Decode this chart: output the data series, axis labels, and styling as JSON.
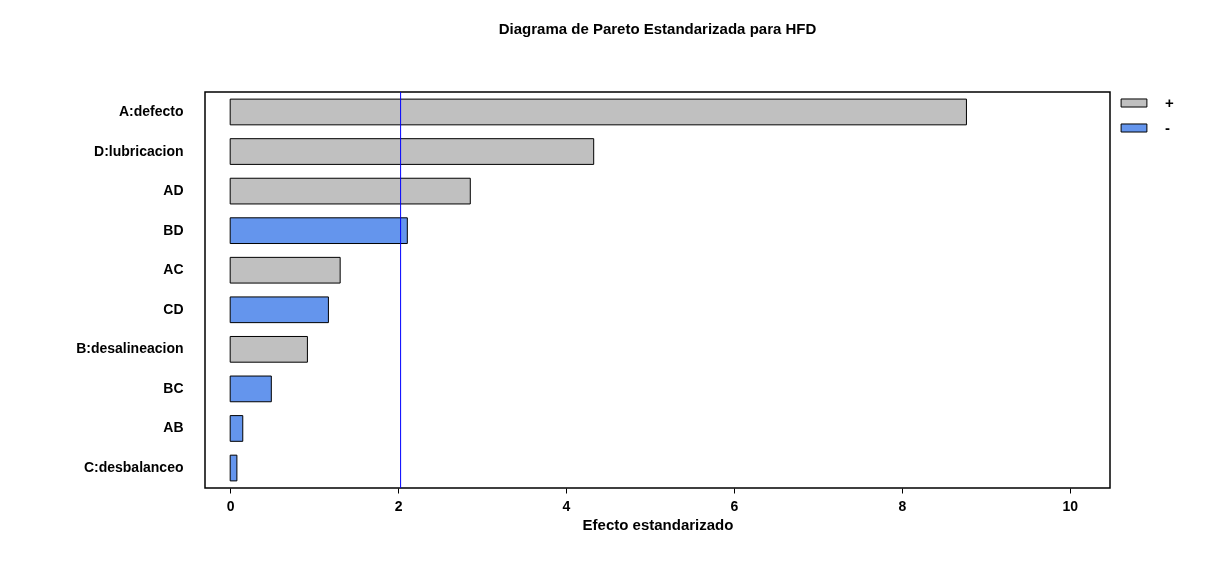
{
  "chart_data": {
    "type": "bar",
    "orientation": "horizontal",
    "title": "Diagrama de Pareto Estandarizada para HFD",
    "xlabel": "Efecto estandarizado",
    "categories": [
      "A:defecto",
      "D:lubricacion",
      "AD",
      "BD",
      "AC",
      "CD",
      "B:desalineacion",
      "BC",
      "AB",
      "C:desbalanceo"
    ],
    "series": [
      {
        "name": "+",
        "color": "#c0c0c0",
        "values": [
          8.77,
          4.33,
          2.86,
          null,
          1.31,
          null,
          0.92,
          null,
          null,
          null
        ]
      },
      {
        "name": "-",
        "color": "#6495ed",
        "values": [
          null,
          null,
          null,
          2.11,
          null,
          1.17,
          null,
          0.49,
          0.15,
          0.08
        ]
      }
    ],
    "xlim": [
      -0.3,
      10.48
    ],
    "xticks": [
      0,
      2,
      4,
      6,
      8,
      10
    ],
    "grid": false,
    "legend": "top right",
    "ref_lines": [
      {
        "axis": "x",
        "value": 2.03,
        "color": "#0000ff"
      }
    ]
  }
}
